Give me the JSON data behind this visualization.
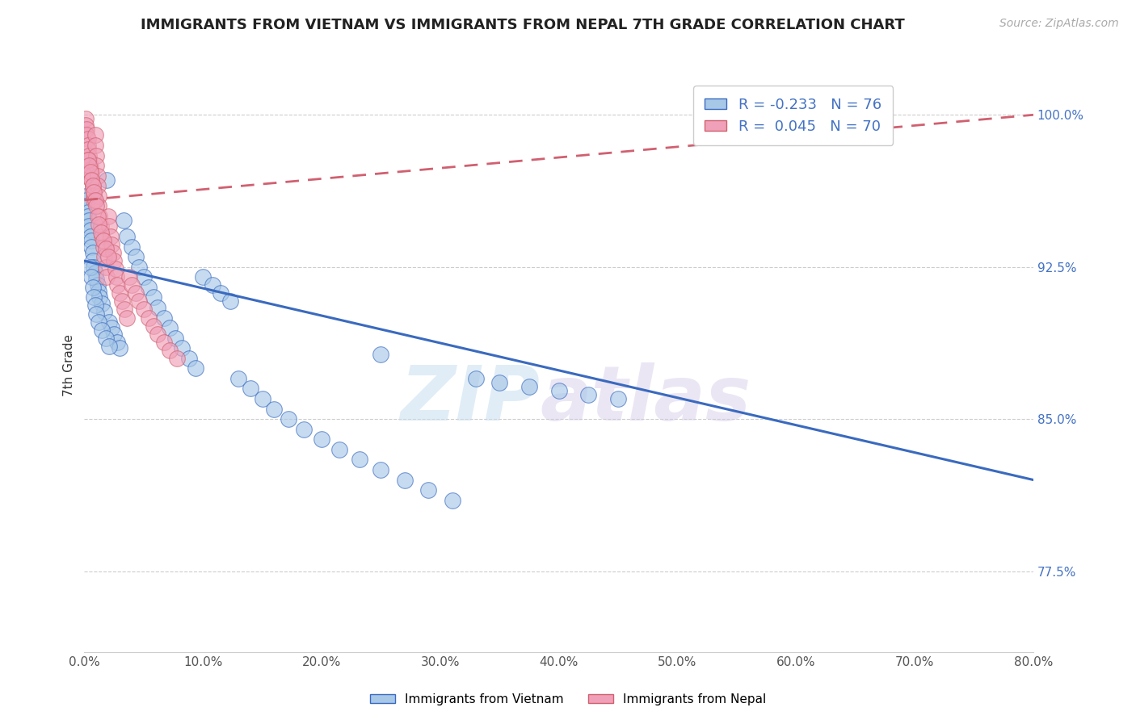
{
  "title": "IMMIGRANTS FROM VIETNAM VS IMMIGRANTS FROM NEPAL 7TH GRADE CORRELATION CHART",
  "source": "Source: ZipAtlas.com",
  "ylabel": "7th Grade",
  "x_min": 0.0,
  "x_max": 0.8,
  "y_min": 0.735,
  "y_max": 1.018,
  "y_ticks_right": [
    1.0,
    0.925,
    0.85,
    0.775
  ],
  "y_tick_labels_right": [
    "100.0%",
    "92.5%",
    "85.0%",
    "77.5%"
  ],
  "legend_r_vietnam": "-0.233",
  "legend_n_vietnam": "76",
  "legend_r_nepal": "0.045",
  "legend_n_nepal": "70",
  "color_vietnam": "#a8c8e8",
  "color_nepal": "#f0a0b8",
  "color_trendline_vietnam": "#3a6abf",
  "color_trendline_nepal": "#d06070",
  "watermark_zip": "ZIP",
  "watermark_atlas": "atlas",
  "vietnam_trendline_x0": 0.0,
  "vietnam_trendline_y0": 0.928,
  "vietnam_trendline_x1": 0.8,
  "vietnam_trendline_y1": 0.82,
  "nepal_trendline_x0": 0.0,
  "nepal_trendline_y0": 0.958,
  "nepal_trendline_x1": 0.8,
  "nepal_trendline_y1": 1.0,
  "vietnam_x": [
    0.001,
    0.002,
    0.002,
    0.003,
    0.003,
    0.004,
    0.004,
    0.005,
    0.005,
    0.006,
    0.006,
    0.007,
    0.007,
    0.008,
    0.009,
    0.01,
    0.011,
    0.012,
    0.013,
    0.015,
    0.017,
    0.019,
    0.021,
    0.023,
    0.025,
    0.028,
    0.03,
    0.033,
    0.036,
    0.04,
    0.043,
    0.046,
    0.05,
    0.054,
    0.058,
    0.062,
    0.067,
    0.072,
    0.077,
    0.082,
    0.088,
    0.094,
    0.1,
    0.108,
    0.115,
    0.123,
    0.13,
    0.14,
    0.15,
    0.16,
    0.172,
    0.185,
    0.2,
    0.215,
    0.232,
    0.25,
    0.27,
    0.29,
    0.31,
    0.33,
    0.35,
    0.375,
    0.4,
    0.425,
    0.45,
    0.005,
    0.006,
    0.007,
    0.008,
    0.009,
    0.01,
    0.012,
    0.015,
    0.018,
    0.021,
    0.25
  ],
  "vietnam_y": [
    0.96,
    0.958,
    0.955,
    0.952,
    0.95,
    0.948,
    0.945,
    0.943,
    0.94,
    0.938,
    0.935,
    0.932,
    0.928,
    0.925,
    0.922,
    0.919,
    0.916,
    0.913,
    0.91,
    0.907,
    0.903,
    0.968,
    0.898,
    0.895,
    0.892,
    0.888,
    0.885,
    0.948,
    0.94,
    0.935,
    0.93,
    0.925,
    0.92,
    0.915,
    0.91,
    0.905,
    0.9,
    0.895,
    0.89,
    0.885,
    0.88,
    0.875,
    0.92,
    0.916,
    0.912,
    0.908,
    0.87,
    0.865,
    0.86,
    0.855,
    0.85,
    0.845,
    0.84,
    0.835,
    0.83,
    0.825,
    0.82,
    0.815,
    0.81,
    0.87,
    0.868,
    0.866,
    0.864,
    0.862,
    0.86,
    0.925,
    0.92,
    0.915,
    0.91,
    0.906,
    0.902,
    0.898,
    0.894,
    0.89,
    0.886,
    0.882
  ],
  "nepal_x": [
    0.001,
    0.001,
    0.002,
    0.002,
    0.003,
    0.003,
    0.003,
    0.004,
    0.004,
    0.005,
    0.005,
    0.006,
    0.006,
    0.007,
    0.007,
    0.008,
    0.008,
    0.009,
    0.009,
    0.01,
    0.01,
    0.011,
    0.011,
    0.012,
    0.012,
    0.013,
    0.014,
    0.015,
    0.016,
    0.017,
    0.018,
    0.019,
    0.02,
    0.021,
    0.022,
    0.023,
    0.024,
    0.025,
    0.026,
    0.027,
    0.028,
    0.03,
    0.032,
    0.034,
    0.036,
    0.038,
    0.04,
    0.043,
    0.046,
    0.05,
    0.054,
    0.058,
    0.062,
    0.067,
    0.072,
    0.078,
    0.003,
    0.004,
    0.005,
    0.006,
    0.007,
    0.008,
    0.009,
    0.01,
    0.011,
    0.012,
    0.014,
    0.016,
    0.018,
    0.02
  ],
  "nepal_y": [
    0.998,
    0.995,
    0.993,
    0.99,
    0.988,
    0.985,
    0.983,
    0.98,
    0.978,
    0.975,
    0.973,
    0.97,
    0.968,
    0.965,
    0.963,
    0.96,
    0.958,
    0.99,
    0.985,
    0.98,
    0.975,
    0.97,
    0.965,
    0.96,
    0.955,
    0.95,
    0.945,
    0.94,
    0.935,
    0.93,
    0.925,
    0.92,
    0.95,
    0.945,
    0.94,
    0.936,
    0.932,
    0.928,
    0.924,
    0.92,
    0.916,
    0.912,
    0.908,
    0.904,
    0.9,
    0.92,
    0.916,
    0.912,
    0.908,
    0.904,
    0.9,
    0.896,
    0.892,
    0.888,
    0.884,
    0.88,
    0.978,
    0.975,
    0.972,
    0.968,
    0.965,
    0.962,
    0.958,
    0.955,
    0.95,
    0.946,
    0.942,
    0.938,
    0.934,
    0.93
  ]
}
